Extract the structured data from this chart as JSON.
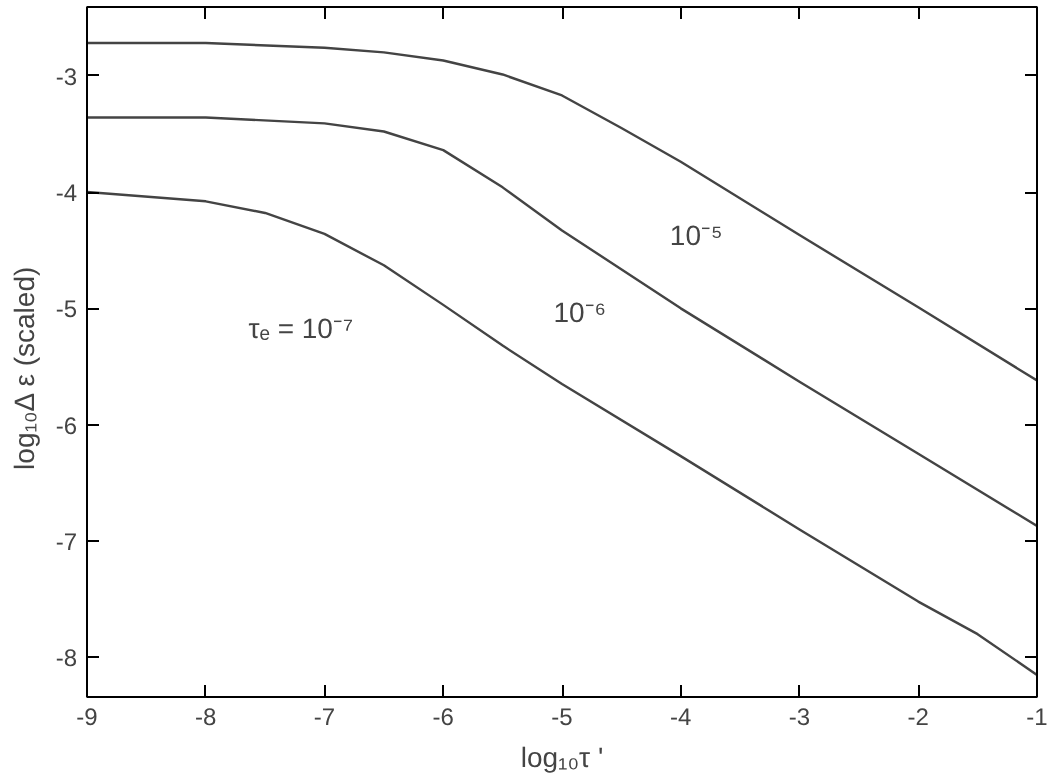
{
  "chart_data": {
    "type": "line",
    "xlabel": "log₁₀τ '",
    "ylabel": "log₁₀Δ ε     (scaled)",
    "xlim": [
      -9,
      -1
    ],
    "ylim": [
      -8.34,
      -2.41
    ],
    "xticks": [
      -9,
      -8,
      -7,
      -6,
      -5,
      -4,
      -3,
      -2,
      -1
    ],
    "yticks": [
      -8,
      -7,
      -6,
      -5,
      -4,
      -3
    ],
    "grid": false,
    "marker": "none",
    "line_style": "solid",
    "series": [
      {
        "color": "#444444",
        "x": [
          -9,
          -8,
          -7,
          -6.5,
          -6,
          -5.5,
          -5,
          -4.5,
          -4,
          -3,
          -2,
          -1
        ],
        "values": [
          -2.72,
          -2.72,
          -2.76,
          -2.8,
          -2.87,
          -2.99,
          -3.17,
          -3.45,
          -3.74,
          -4.37,
          -4.99,
          -5.62
        ]
      },
      {
        "color": "#444444",
        "x": [
          -9,
          -8,
          -7,
          -6.5,
          -6,
          -5.5,
          -5,
          -4,
          -3,
          -2,
          -1
        ],
        "values": [
          -3.36,
          -3.36,
          -3.41,
          -3.48,
          -3.64,
          -3.96,
          -4.33,
          -5.0,
          -5.63,
          -6.25,
          -6.87
        ]
      },
      {
        "color": "#444444",
        "x": [
          -9,
          -8,
          -7.5,
          -7,
          -6.5,
          -6,
          -5.5,
          -5,
          -4,
          -3,
          -2,
          -1.5,
          -1
        ],
        "values": [
          -4.0,
          -4.08,
          -4.18,
          -4.36,
          -4.63,
          -4.97,
          -5.32,
          -5.65,
          -6.27,
          -6.9,
          -7.52,
          -7.8,
          -8.15
        ]
      }
    ],
    "annotations": [
      "10⁻⁵",
      "10⁻⁶",
      "τₑ = 10⁻⁷"
    ]
  }
}
